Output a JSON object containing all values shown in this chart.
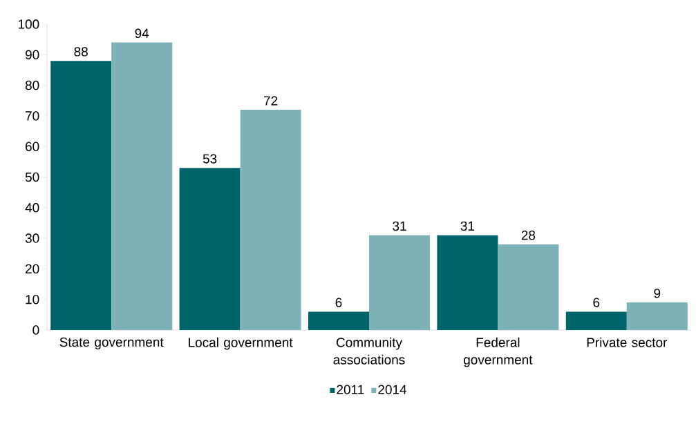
{
  "chart_data": {
    "type": "bar",
    "categories": [
      "State government",
      "Local government",
      "Community associations",
      "Federal government",
      "Private sector"
    ],
    "series": [
      {
        "name": "2011",
        "color": "#00656a",
        "values": [
          88,
          53,
          6,
          31,
          6
        ]
      },
      {
        "name": "2014",
        "color": "#7fb2b6",
        "values": [
          94,
          72,
          31,
          28,
          9
        ]
      }
    ],
    "ylim": [
      0,
      100
    ],
    "yticks": [
      0,
      10,
      20,
      30,
      40,
      50,
      60,
      70,
      80,
      90,
      100
    ],
    "data_labels": true,
    "legend": "bottom",
    "grid": false
  }
}
